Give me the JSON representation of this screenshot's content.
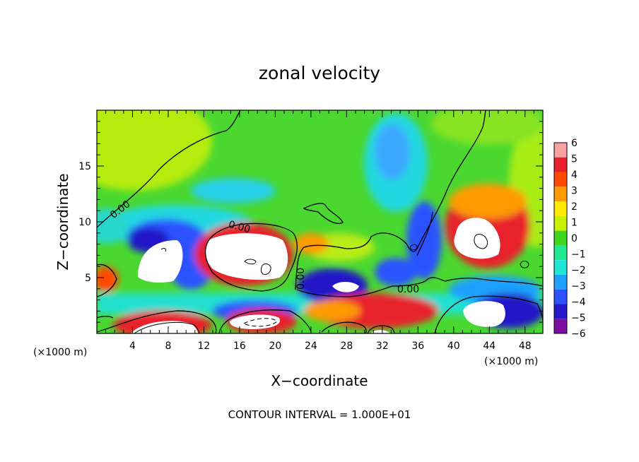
{
  "chart_data": {
    "type": "heatmap",
    "title": "zonal velocity",
    "xlabel": "X−coordinate",
    "ylabel": "Z−coordinate",
    "x_unit": "(×1000 m)",
    "x_ticks": [
      "4",
      "8",
      "12",
      "16",
      "20",
      "24",
      "28",
      "32",
      "36",
      "40",
      "44",
      "48"
    ],
    "x_tick_values": [
      4,
      8,
      12,
      16,
      20,
      24,
      28,
      32,
      36,
      40,
      44,
      48
    ],
    "y_ticks": [
      "5",
      "10",
      "15"
    ],
    "y_tick_values": [
      5,
      10,
      15
    ],
    "xlim": [
      0,
      50
    ],
    "ylim": [
      0,
      20
    ],
    "colorbar_labels": [
      "6",
      "5",
      "4",
      "3",
      "2",
      "1",
      "0",
      "−1",
      "−2",
      "−3",
      "−4",
      "−5",
      "−6"
    ],
    "colorbar_colors": [
      "#f7a1a1",
      "#e8202a",
      "#ff4a00",
      "#ff9a00",
      "#ffea00",
      "#c8f000",
      "#3ed61e",
      "#22e890",
      "#20e6d8",
      "#1ea0ff",
      "#2c52ff",
      "#2418c8",
      "#7a0fa0"
    ],
    "contour_labels": [
      "0.00",
      "0.00",
      "0.00",
      "0.00"
    ],
    "footer": "CONTOUR INTERVAL =  1.000E+01"
  }
}
